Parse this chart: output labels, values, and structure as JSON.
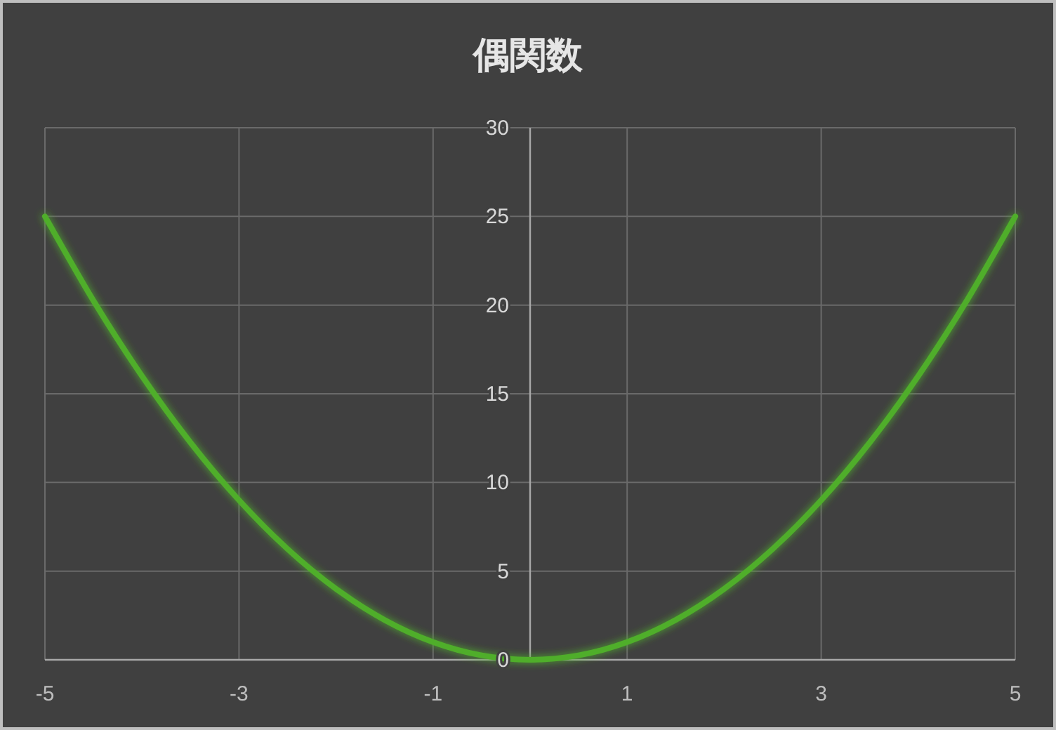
{
  "chart_data": {
    "type": "line",
    "title": "偶関数",
    "x": [
      -5,
      -4.5,
      -4,
      -3.5,
      -3,
      -2.5,
      -2,
      -1.5,
      -1,
      -0.5,
      0,
      0.5,
      1,
      1.5,
      2,
      2.5,
      3,
      3.5,
      4,
      4.5,
      5
    ],
    "series": [
      {
        "color": "#4fae2c",
        "values": [
          25,
          20.25,
          16,
          12.25,
          9,
          6.25,
          4,
          2.25,
          1,
          0.25,
          0,
          0.25,
          1,
          2.25,
          4,
          6.25,
          9,
          12.25,
          16,
          20.25,
          25
        ]
      }
    ],
    "xlim": [
      -5,
      5
    ],
    "ylim": [
      0,
      30
    ],
    "xticks": [
      -5,
      -3,
      -1,
      1,
      3,
      5
    ],
    "yticks": [
      0,
      5,
      10,
      15,
      20,
      25,
      30
    ],
    "grid": true
  }
}
